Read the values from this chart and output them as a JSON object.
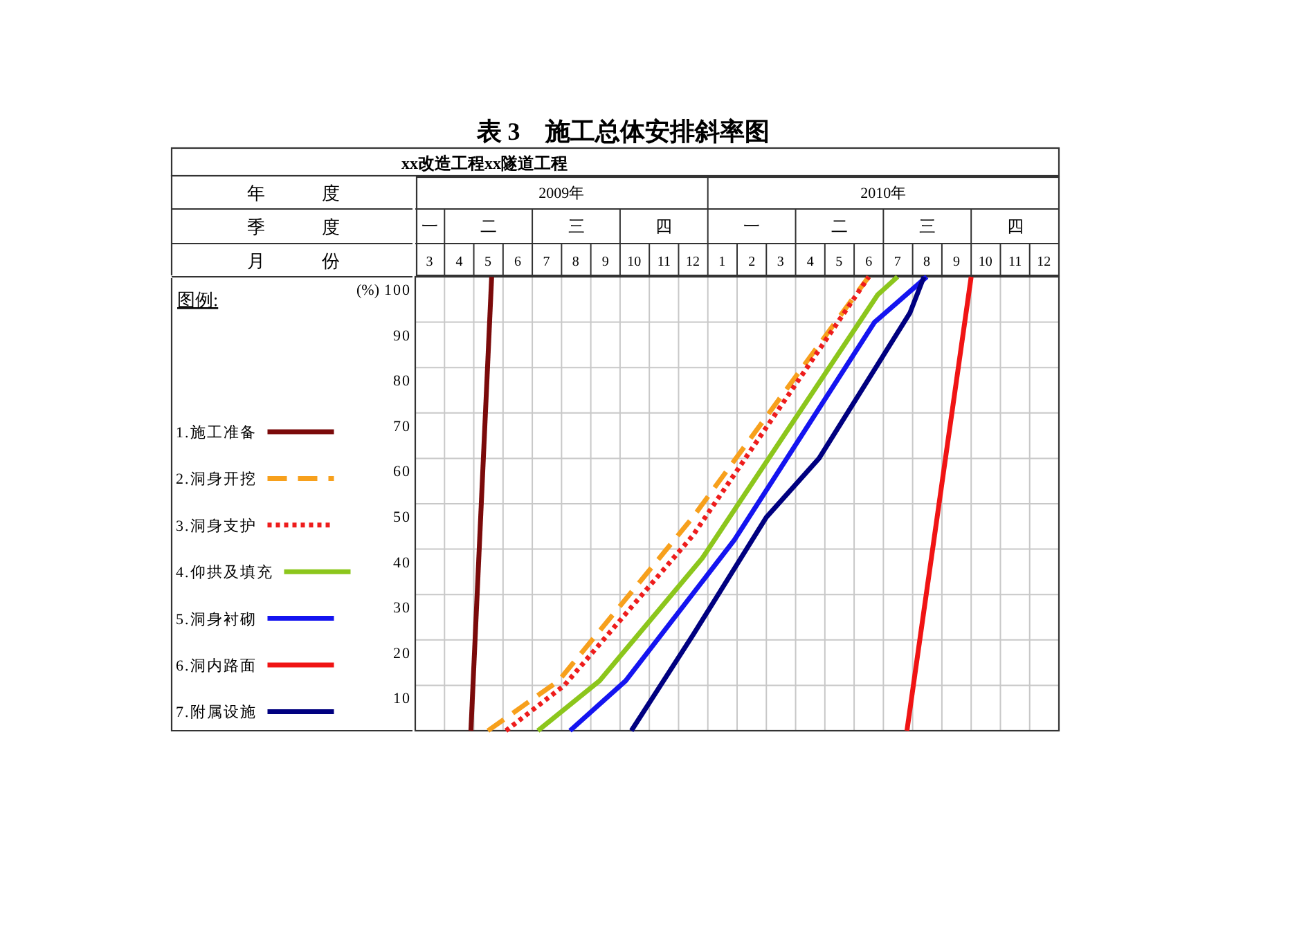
{
  "chart_data": {
    "type": "line",
    "title": "表 3　施工总体安排斜率图",
    "subtitle": "xx改造工程xx隧道工程",
    "xlabel": "月 份",
    "ylabel": "(%)",
    "legend_title": "图例:",
    "legend": "left",
    "grid": true,
    "xlim": [
      "2009-03-01",
      "2011-01-01"
    ],
    "xticks": [
      {
        "value": "2009-03-16",
        "label": "3"
      },
      {
        "value": "2009-04-16",
        "label": "4"
      },
      {
        "value": "2009-05-16",
        "label": "5"
      },
      {
        "value": "2009-06-16",
        "label": "6"
      },
      {
        "value": "2009-07-16",
        "label": "7"
      },
      {
        "value": "2009-08-16",
        "label": "8"
      },
      {
        "value": "2009-09-16",
        "label": "9"
      },
      {
        "value": "2009-10-16",
        "label": "10"
      },
      {
        "value": "2009-11-16",
        "label": "11"
      },
      {
        "value": "2009-12-16",
        "label": "12"
      },
      {
        "value": "2010-01-16",
        "label": "1"
      },
      {
        "value": "2010-02-15",
        "label": "2"
      },
      {
        "value": "2010-03-16",
        "label": "3"
      },
      {
        "value": "2010-04-16",
        "label": "4"
      },
      {
        "value": "2010-05-16",
        "label": "5"
      },
      {
        "value": "2010-06-16",
        "label": "6"
      },
      {
        "value": "2010-07-16",
        "label": "7"
      },
      {
        "value": "2010-08-16",
        "label": "8"
      },
      {
        "value": "2010-09-16",
        "label": "9"
      },
      {
        "value": "2010-10-16",
        "label": "10"
      },
      {
        "value": "2010-11-16",
        "label": "11"
      },
      {
        "value": "2010-12-16",
        "label": "12"
      }
    ],
    "annotations": [
      "年 度",
      "2009年",
      "2010年",
      "季 度",
      "一",
      "二",
      "三",
      "四",
      "一",
      "二",
      "三",
      "四"
    ],
    "ylim": [
      0,
      100
    ],
    "yticks": [
      10,
      20,
      30,
      40,
      50,
      60,
      70,
      80,
      90,
      100
    ],
    "series": [
      {
        "name": "1.施工准备",
        "color": "#7b0a0a",
        "line_style": "solid",
        "x": [
          "2009-04-28",
          "2009-05-20"
        ],
        "values": [
          0,
          100
        ]
      },
      {
        "name": "2.洞身开挖",
        "color": "#f7a01c",
        "line_style": "dashed",
        "x": [
          "2009-05-16",
          "2009-07-29",
          "2009-12-16",
          "2010-06-16"
        ],
        "values": [
          0,
          11,
          47,
          100
        ]
      },
      {
        "name": "3.洞身支护",
        "color": "#ee1c1c",
        "line_style": "dotted",
        "x": [
          "2009-06-04",
          "2009-08-04",
          "2009-12-16",
          "2010-06-16"
        ],
        "values": [
          0,
          10,
          43,
          100
        ]
      },
      {
        "name": "4.仰拱及填充",
        "color": "#8cc61c",
        "line_style": "solid",
        "x": [
          "2009-07-07",
          "2009-09-10",
          "2009-12-26",
          "2010-06-25",
          "2010-07-16"
        ],
        "values": [
          0,
          11,
          38,
          96,
          100
        ]
      },
      {
        "name": "5.洞身衬砌",
        "color": "#1414f0",
        "line_style": "solid",
        "x": [
          "2009-08-10",
          "2009-10-07",
          "2010-01-29",
          "2010-06-22",
          "2010-08-16"
        ],
        "values": [
          0,
          11,
          42,
          90,
          100
        ]
      },
      {
        "name": "6.洞内路面",
        "color": "#f01414",
        "line_style": "solid",
        "x": [
          "2010-07-26",
          "2010-10-01"
        ],
        "values": [
          0,
          100
        ]
      },
      {
        "name": "7.附属设施",
        "color": "#000080",
        "line_style": "solid",
        "x": [
          "2009-10-13",
          "2009-12-16",
          "2010-03-01",
          "2010-04-25",
          "2010-07-29",
          "2010-08-13"
        ],
        "values": [
          0,
          21,
          47,
          60,
          92,
          100
        ]
      }
    ]
  }
}
